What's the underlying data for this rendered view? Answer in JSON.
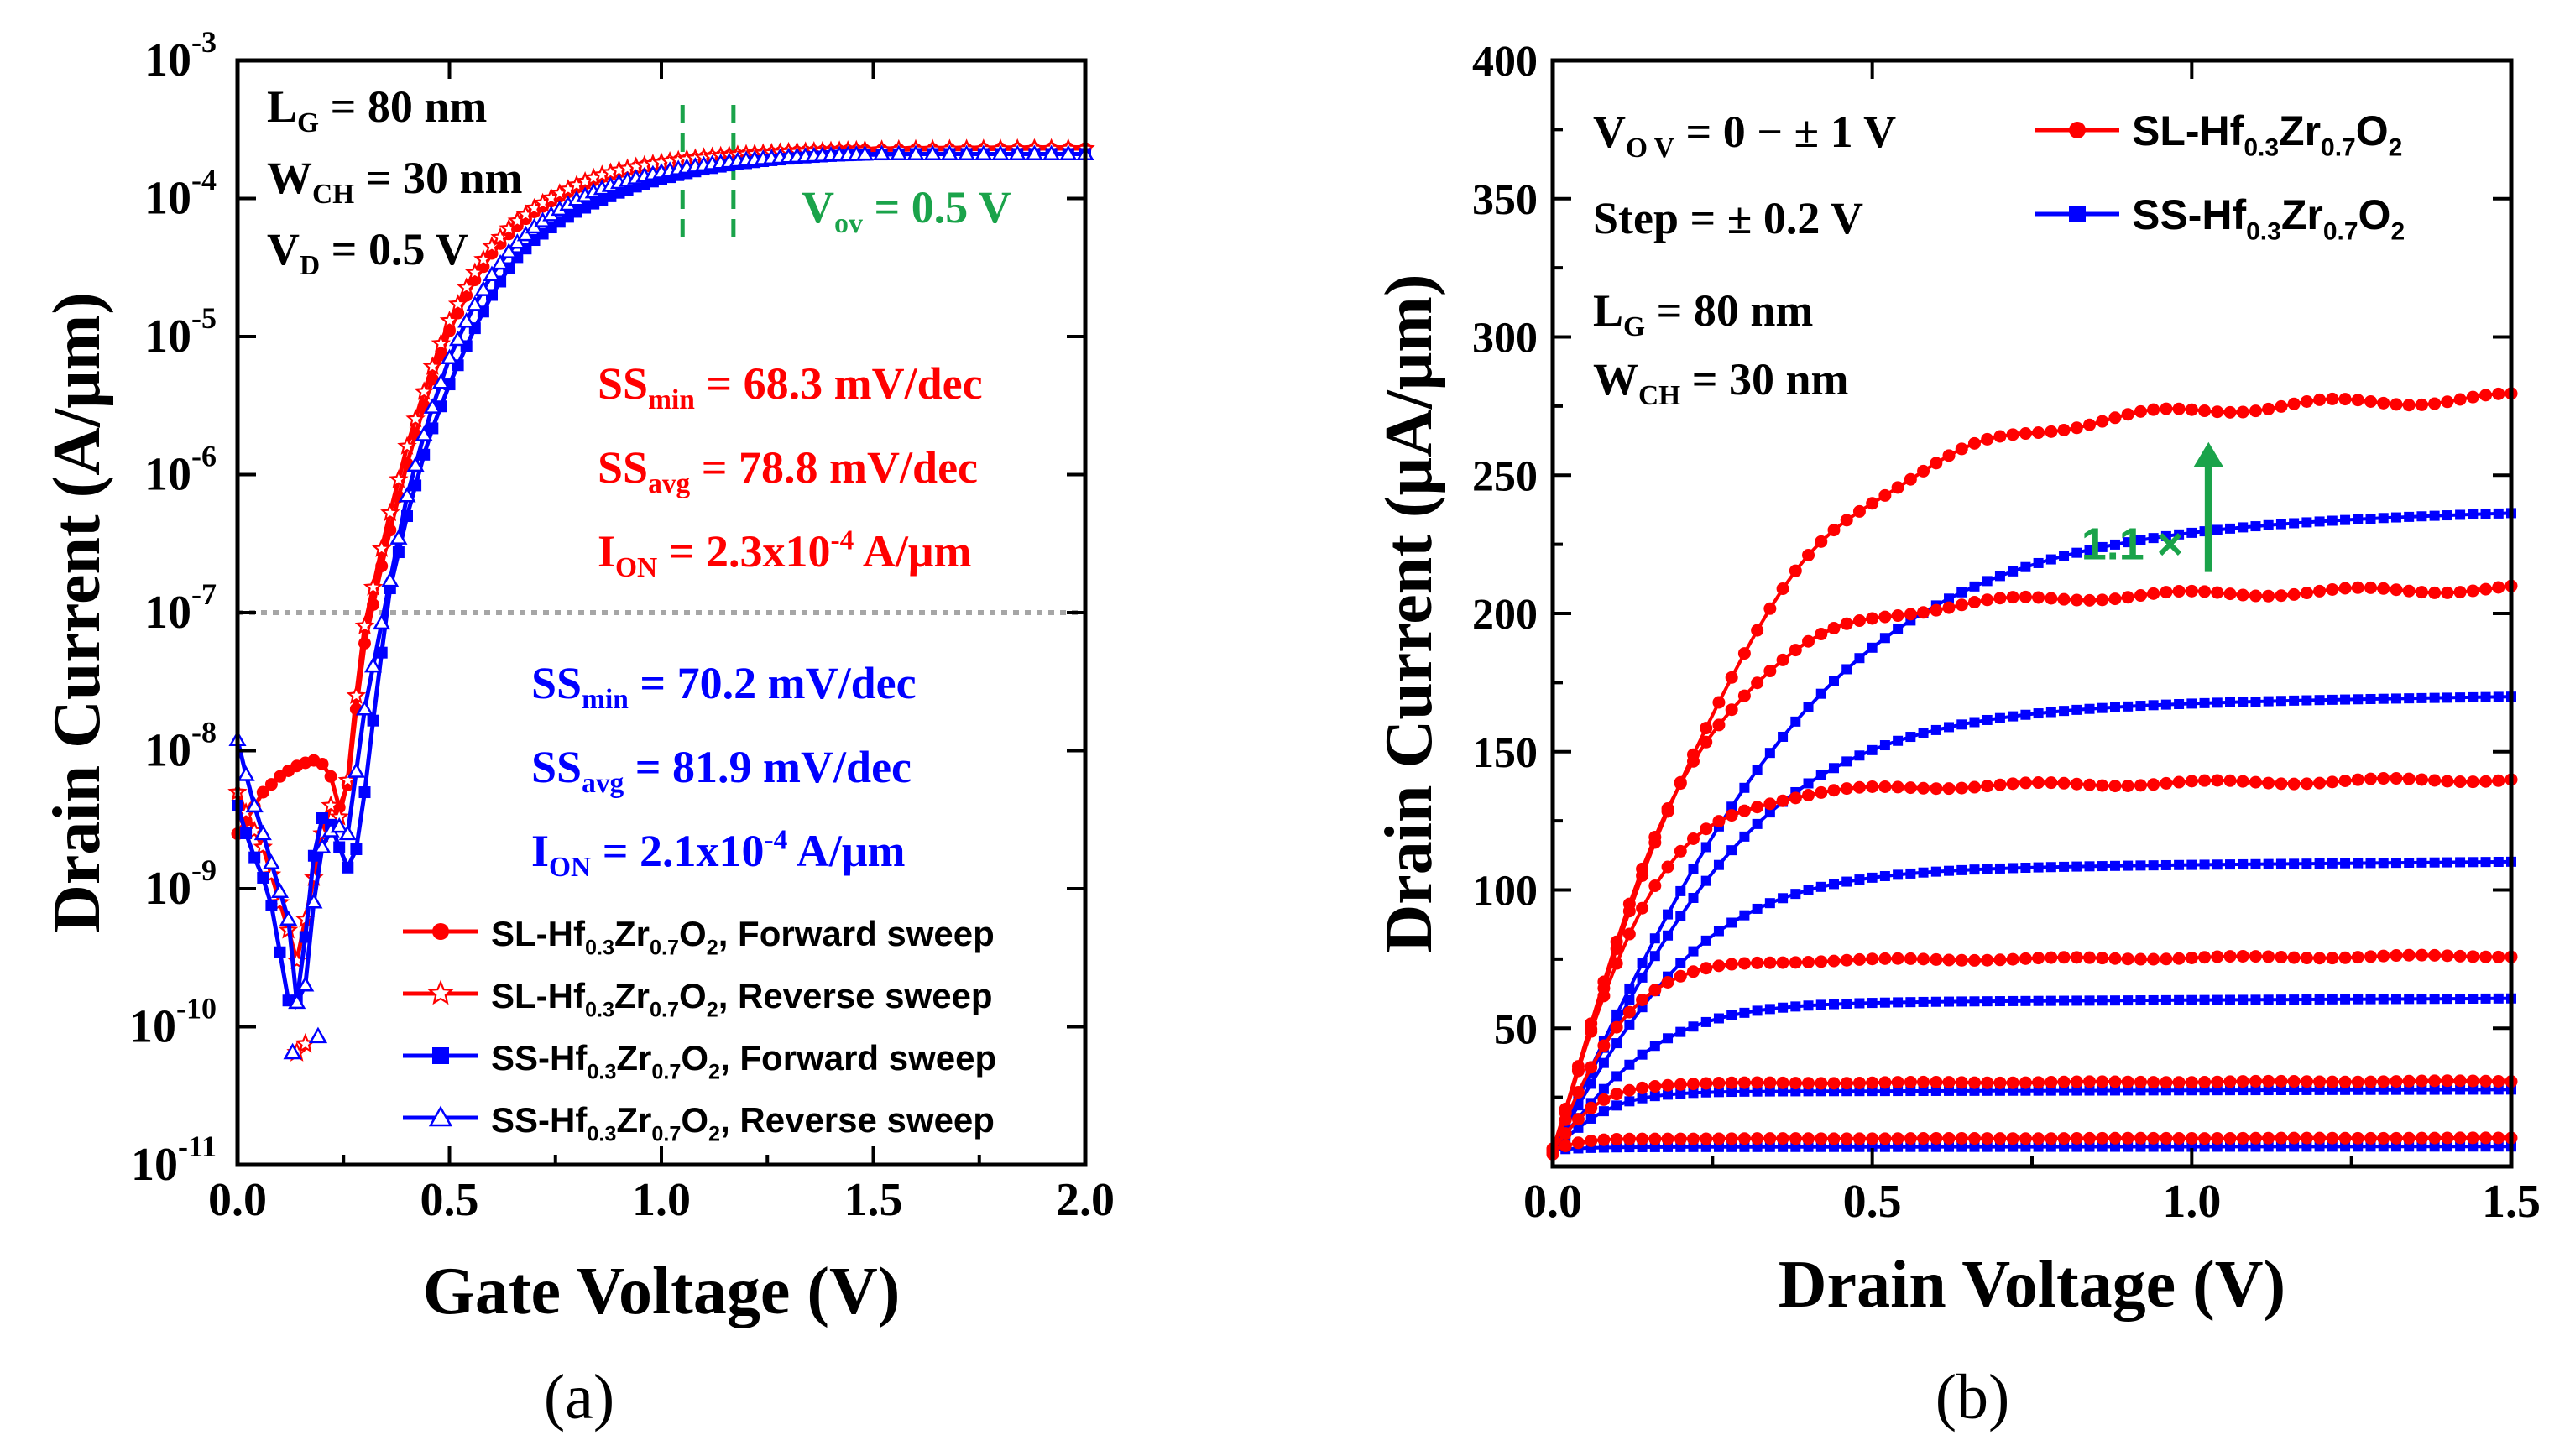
{
  "chart_data": [
    {
      "type": "line",
      "panel": "a",
      "panel_label": "(a)",
      "xlabel": "Gate Voltage (V)",
      "ylabel": "Drain Current (A/μm)",
      "xscale": "linear",
      "yscale": "log",
      "xlim": [
        0.0,
        2.0
      ],
      "ylim": [
        1e-11,
        0.001
      ],
      "xticks": [
        "0.0",
        "0.5",
        "1.0",
        "1.5",
        "2.0"
      ],
      "yticks": [
        {
          "base": "10",
          "exp": "-11"
        },
        {
          "base": "10",
          "exp": "-10"
        },
        {
          "base": "10",
          "exp": "-9"
        },
        {
          "base": "10",
          "exp": "-8"
        },
        {
          "base": "10",
          "exp": "-7"
        },
        {
          "base": "10",
          "exp": "-6"
        },
        {
          "base": "10",
          "exp": "-5"
        },
        {
          "base": "10",
          "exp": "-4"
        },
        {
          "base": "10",
          "exp": "-3"
        }
      ],
      "reference_line": {
        "y": 1e-07,
        "style": "dotted",
        "color": "#a6a6a6"
      },
      "vov_markers": {
        "x": [
          1.05,
          1.17
        ],
        "color": "#1aa34a",
        "label": "V",
        "label_sub": "ov",
        "label_rest": " = 0.5 V"
      },
      "conditions": [
        {
          "base": "L",
          "sub": "G",
          "rest": " = 80 nm"
        },
        {
          "base": "W",
          "sub": "CH",
          "rest": " = 30 nm"
        },
        {
          "base": "V",
          "sub": "D",
          "rest": " = 0.5 V"
        }
      ],
      "annotations_sl": [
        {
          "base": "SS",
          "sub": "min",
          "rest": " = 68.3 mV/dec"
        },
        {
          "base": "SS",
          "sub": "avg",
          "rest": " = 78.8 mV/dec"
        },
        {
          "base": "I",
          "sub": "ON",
          "rest": " = 2.3x10",
          "sup": "-4",
          "tail": " A/μm"
        }
      ],
      "annotations_ss": [
        {
          "base": "SS",
          "sub": "min",
          "rest": " = 70.2 mV/dec"
        },
        {
          "base": "SS",
          "sub": "avg",
          "rest": " = 81.9 mV/dec"
        },
        {
          "base": "I",
          "sub": "ON",
          "rest": " = 2.1x10",
          "sup": "-4",
          "tail": " A/μm"
        }
      ],
      "legend": [
        {
          "a": "SL-Hf",
          "s1": "0.3",
          "b": "Zr",
          "s2": "0.7",
          "c": "O",
          "s3": "2",
          "d": ", Forward sweep"
        },
        {
          "a": "SL-Hf",
          "s1": "0.3",
          "b": "Zr",
          "s2": "0.7",
          "c": "O",
          "s3": "2",
          "d": ", Reverse sweep"
        },
        {
          "a": "SS-Hf",
          "s1": "0.3",
          "b": "Zr",
          "s2": "0.7",
          "c": "O",
          "s3": "2",
          "d": ", Forward sweep"
        },
        {
          "a": "SS-Hf",
          "s1": "0.3",
          "b": "Zr",
          "s2": "0.7",
          "c": "O",
          "s3": "2",
          "d": ", Reverse sweep"
        }
      ],
      "series": [
        {
          "name": "SL-Hf0.3Zr0.7O2, Forward sweep",
          "color": "#ff0000",
          "marker": "circle",
          "x": [
            0.0,
            0.03,
            0.06,
            0.1,
            0.13,
            0.15,
            0.18,
            0.2,
            0.22,
            0.25,
            0.28,
            0.3,
            0.35,
            0.4,
            0.45,
            0.5,
            0.55,
            0.6,
            0.65,
            0.7,
            0.75,
            0.8,
            0.85,
            0.9,
            0.95,
            1.0,
            1.05,
            1.1,
            1.15,
            1.2,
            1.25,
            1.3,
            1.35,
            1.4,
            1.45,
            1.5,
            1.6,
            1.7,
            1.8,
            1.9,
            2.0
          ],
          "y": [
            2.5e-09,
            3.5e-09,
            5e-09,
            6.5e-09,
            7.5e-09,
            8e-09,
            8.5e-09,
            8e-09,
            6.5e-09,
            3e-09,
            2e-08,
            6e-08,
            3e-07,
            1.2e-06,
            4e-06,
            1.1e-05,
            2.3e-05,
            4e-05,
            6e-05,
            8e-05,
            0.0001,
            0.00012,
            0.00014,
            0.000155,
            0.00017,
            0.00018,
            0.00019,
            0.000197,
            0.000203,
            0.000208,
            0.000212,
            0.000216,
            0.000219,
            0.000221,
            0.000223,
            0.000225,
            0.000227,
            0.000228,
            0.000229,
            0.00023,
            0.00023
          ]
        },
        {
          "name": "SL-Hf0.3Zr0.7O2, Reverse sweep",
          "color": "#ff0000",
          "marker": "star",
          "x": [
            0.0,
            0.03,
            0.06,
            0.09,
            0.12,
            0.14,
            0.16,
            0.18,
            0.2,
            0.22,
            0.25,
            0.28,
            0.3,
            0.35,
            0.4,
            0.45,
            0.5,
            0.55,
            0.6,
            0.65,
            0.7,
            0.75,
            0.8,
            0.85,
            0.9,
            0.95,
            1.0,
            1.05,
            1.1,
            1.15,
            1.2,
            1.25,
            1.3,
            1.4,
            1.5,
            1.6,
            1.7,
            1.8,
            1.9,
            2.0
          ],
          "y": [
            5e-09,
            3e-09,
            2e-09,
            1e-09,
            5e-10,
            3e-10,
            6e-10,
            1.2e-09,
            2.5e-09,
            4e-09,
            3e-09,
            2.5e-08,
            8e-08,
            4e-07,
            1.6e-06,
            5e-06,
            1.3e-05,
            2.6e-05,
            4.5e-05,
            6.5e-05,
            8.5e-05,
            0.000105,
            0.000125,
            0.000145,
            0.00016,
            0.000172,
            0.000182,
            0.000191,
            0.000198,
            0.000204,
            0.000209,
            0.000213,
            0.000217,
            0.000221,
            0.000225,
            0.000227,
            0.000228,
            0.000229,
            0.00023,
            0.00023
          ]
        },
        {
          "name": "SS-Hf0.3Zr0.7O2, Forward sweep",
          "color": "#0000ff",
          "marker": "square",
          "x": [
            0.0,
            0.03,
            0.06,
            0.09,
            0.11,
            0.13,
            0.15,
            0.17,
            0.19,
            0.21,
            0.24,
            0.27,
            0.3,
            0.33,
            0.36,
            0.4,
            0.45,
            0.5,
            0.55,
            0.6,
            0.65,
            0.7,
            0.75,
            0.8,
            0.85,
            0.9,
            0.95,
            1.0,
            1.05,
            1.1,
            1.15,
            1.2,
            1.25,
            1.3,
            1.35,
            1.4,
            1.45,
            1.5,
            1.6,
            1.7,
            1.8,
            1.9,
            2.0
          ],
          "y": [
            4e-09,
            2e-09,
            1.2e-09,
            6e-10,
            2e-10,
            1.2e-10,
            2e-10,
            1e-09,
            3e-09,
            3.5e-09,
            2e-09,
            1.2e-09,
            5e-09,
            3e-08,
            1.5e-07,
            5e-07,
            1.8e-06,
            4.5e-06,
            1e-05,
            2e-05,
            3.5e-05,
            5e-05,
            6.5e-05,
            8e-05,
            9.5e-05,
            0.00011,
            0.000125,
            0.000138,
            0.00015,
            0.000162,
            0.000172,
            0.00018,
            0.000188,
            0.000194,
            0.000199,
            0.000203,
            0.000206,
            0.000208,
            0.00021,
            0.00021,
            0.00021,
            0.00021,
            0.00021
          ]
        },
        {
          "name": "SS-Hf0.3Zr0.7O2, Reverse sweep",
          "color": "#0000ff",
          "marker": "triangle",
          "x": [
            0.0,
            0.03,
            0.06,
            0.09,
            0.12,
            0.14,
            0.16,
            0.18,
            0.2,
            0.23,
            0.26,
            0.3,
            0.35,
            0.4,
            0.45,
            0.5,
            0.55,
            0.6,
            0.65,
            0.7,
            0.75,
            0.8,
            0.85,
            0.9,
            0.95,
            1.0,
            1.05,
            1.1,
            1.15,
            1.2,
            1.25,
            1.3,
            1.4,
            1.5,
            1.6,
            1.7,
            1.8,
            1.9,
            2.0
          ],
          "y": [
            1.2e-08,
            5e-09,
            2.5e-09,
            1.2e-09,
            6e-10,
            1.5e-10,
            2e-10,
            8e-10,
            2e-09,
            3e-09,
            2.5e-09,
            2e-08,
            1.2e-07,
            7e-07,
            2.5e-06,
            7e-06,
            1.5e-05,
            2.8e-05,
            4.5e-05,
            6.2e-05,
            8e-05,
            9.8e-05,
            0.000115,
            0.00013,
            0.000143,
            0.000155,
            0.000166,
            0.000175,
            0.000183,
            0.00019,
            0.000195,
            0.0002,
            0.000206,
            0.00021,
            0.00021,
            0.00021,
            0.00021,
            0.00021,
            0.00021
          ]
        }
      ],
      "outliers": [
        {
          "series": "SL-Hf0.3Zr0.7O2, Reverse sweep",
          "x": [
            0.14,
            0.16
          ],
          "y": [
            6.5e-11,
            7.5e-11
          ]
        },
        {
          "series": "SS-Hf0.3Zr0.7O2, Reverse sweep",
          "x": [
            0.13,
            0.19
          ],
          "y": [
            6.5e-11,
            8.5e-11
          ]
        }
      ]
    },
    {
      "type": "line",
      "panel": "b",
      "panel_label": "(b)",
      "xlabel": "Drain Voltage (V)",
      "ylabel": "Drain Current (μA/μm)",
      "xscale": "linear",
      "yscale": "linear",
      "xlim": [
        0.0,
        1.5
      ],
      "ylim": [
        0,
        400
      ],
      "xticks": [
        "0.0",
        "0.5",
        "1.0",
        "1.5"
      ],
      "yticks": [
        "50",
        "100",
        "150",
        "200",
        "250",
        "300",
        "350",
        "400"
      ],
      "conditions": [
        {
          "base": "V",
          "sub": "O V",
          "rest": " = 0 − ± 1 V"
        },
        {
          "base": "Step",
          "sub": "",
          "rest": " = ± 0.2 V"
        },
        {
          "base": "L",
          "sub": "G",
          "rest": " = 80 nm"
        },
        {
          "base": "W",
          "sub": "CH",
          "rest": " = 30 nm"
        }
      ],
      "legend": [
        {
          "a": "SL-Hf",
          "s1": "0.3",
          "b": "Zr",
          "s2": "0.7",
          "c": "O",
          "s3": "2"
        },
        {
          "a": "SS-Hf",
          "s1": "0.3",
          "b": "Zr",
          "s2": "0.7",
          "c": "O",
          "s3": "2"
        }
      ],
      "arrow_annotation": {
        "text": "1.1 ×",
        "x": 1.0,
        "y_from": 215,
        "y_to": 262,
        "color": "#1aa34a"
      },
      "sl_curves": {
        "name": "SL-Hf0.3Zr0.7O2",
        "color": "#ff0000",
        "marker": "circle",
        "vov": [
          "0.0",
          "0.2",
          "0.4",
          "0.6",
          "0.8",
          "1.0"
        ],
        "isat": [
          10,
          30,
          74,
          136,
          203,
          270
        ],
        "vsat": [
          0.12,
          0.18,
          0.28,
          0.38,
          0.55,
          0.8
        ]
      },
      "ss_curves": {
        "name": "SS-Hf0.3Zr0.7O2",
        "color": "#0000ff",
        "marker": "square",
        "vov": [
          "0.0",
          "0.2",
          "0.4",
          "0.6",
          "0.8",
          "1.0"
        ],
        "isat": [
          7,
          27,
          59,
          107,
          165,
          230
        ],
        "vsat": [
          0.15,
          0.22,
          0.4,
          0.55,
          0.75,
          1.0
        ]
      }
    }
  ]
}
